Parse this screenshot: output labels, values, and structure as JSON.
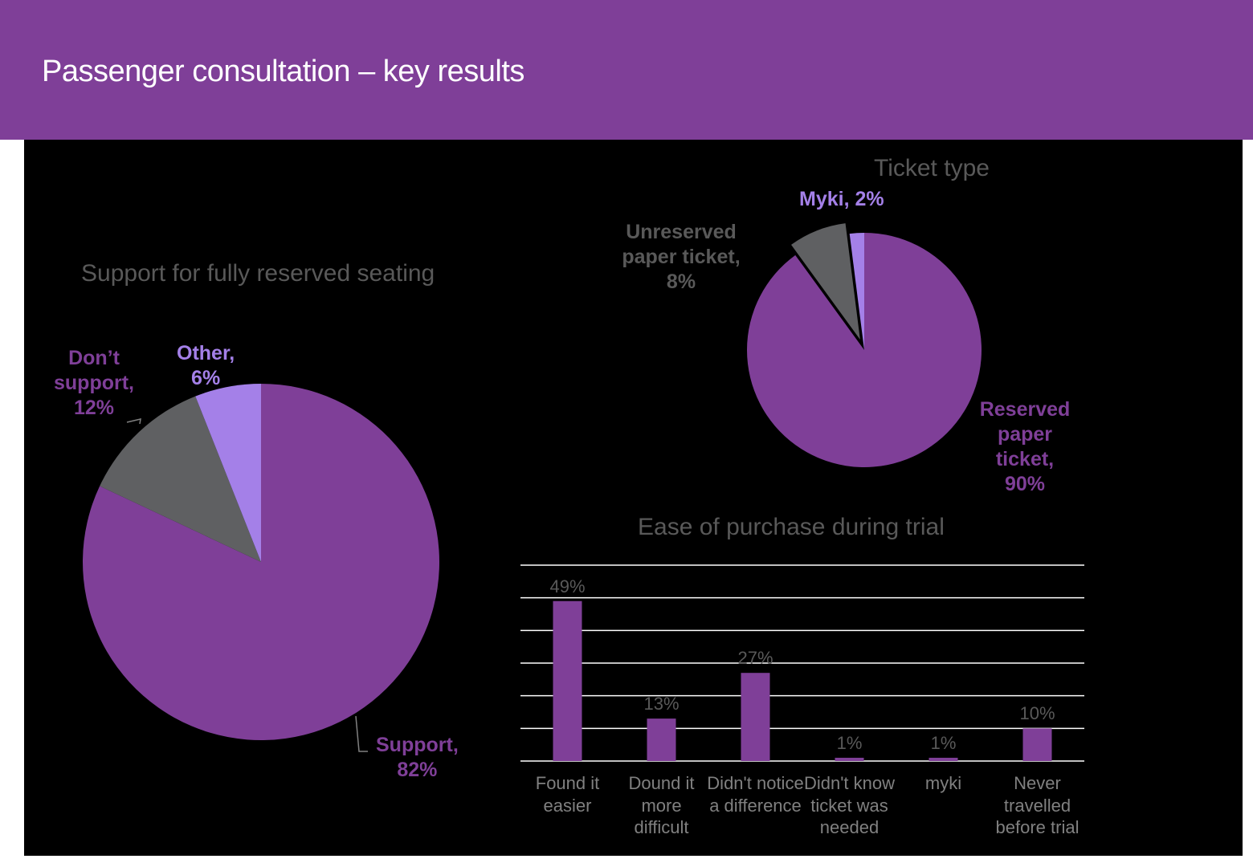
{
  "header": {
    "title": "Passenger consultation – key results"
  },
  "colors": {
    "header_bg": "#7f3f98",
    "purple": "#7f3f98",
    "grey": "#5f6062",
    "lavender": "#a480e8",
    "canvas": "#000000"
  },
  "chart_data": [
    {
      "type": "pie",
      "title": "Support for fully reserved seating",
      "slices": [
        {
          "label": "Support,",
          "value": 82,
          "value_text": "82%",
          "color": "#7f3f98"
        },
        {
          "label": "Don’t support,",
          "value": 12,
          "value_text": "12%",
          "color": "#5f6062"
        },
        {
          "label": "Other,",
          "value": 6,
          "value_text": "6%",
          "color": "#a480e8"
        }
      ]
    },
    {
      "type": "pie",
      "title": "Ticket type",
      "slices": [
        {
          "label": "Reserved paper ticket,",
          "value": 90,
          "value_text": "90%",
          "color": "#7f3f98"
        },
        {
          "label": "Unreserved paper ticket,",
          "value": 8,
          "value_text": "8%",
          "color": "#5f6062",
          "exploded": true
        },
        {
          "label": "Myki,",
          "value": 2,
          "value_text": "2%",
          "color": "#a480e8"
        }
      ]
    },
    {
      "type": "bar",
      "title": "Ease of purchase during trial",
      "categories": [
        "Found it easier",
        "Dound it more difficult",
        "Didn't notice a difference",
        "Didn't know ticket was needed",
        "myki",
        "Never travelled before trial"
      ],
      "values": [
        49,
        13,
        27,
        1,
        1,
        10
      ],
      "value_labels": [
        "49%",
        "13%",
        "27%",
        "1%",
        "1%",
        "10%"
      ],
      "ylim": [
        0,
        60
      ],
      "grid": true,
      "color": "#7f3f98"
    }
  ]
}
